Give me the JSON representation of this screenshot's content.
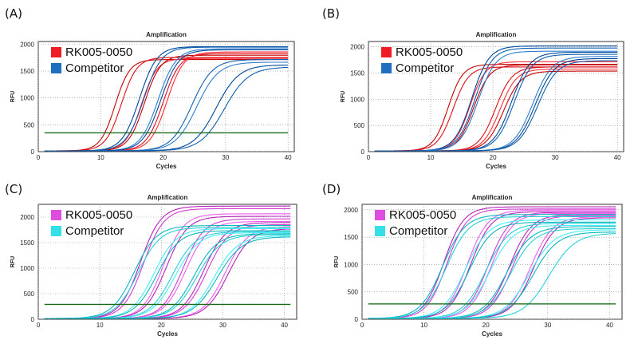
{
  "panel_labels": [
    "(A)",
    "(B)",
    "(C)",
    "(D)"
  ],
  "chart_data": [
    {
      "type": "line",
      "title": "Amplification",
      "xlabel": "Cycles",
      "ylabel": "RFU",
      "xlim": [
        0,
        41
      ],
      "ylim": [
        0,
        2050
      ],
      "xticks": [
        0,
        10,
        20,
        30,
        40
      ],
      "yticks": [
        0,
        500,
        1000,
        1500,
        2000
      ],
      "grid": true,
      "legend_position": "top-left",
      "threshold": 350,
      "legend": [
        {
          "label": "RK005-0050",
          "color": "#ee1c25"
        },
        {
          "label": "Competitor",
          "color": "#1f6fc0"
        }
      ],
      "series": [
        {
          "group": 0,
          "ct": 12.3,
          "plateau": 1700,
          "slope": 0.85
        },
        {
          "group": 0,
          "ct": 13.3,
          "plateau": 1740,
          "slope": 0.8
        },
        {
          "group": 0,
          "ct": 16.5,
          "plateau": 1720,
          "slope": 0.8
        },
        {
          "group": 0,
          "ct": 17.0,
          "plateau": 1780,
          "slope": 0.78
        },
        {
          "group": 0,
          "ct": 20.0,
          "plateau": 1810,
          "slope": 0.75
        },
        {
          "group": 0,
          "ct": 20.6,
          "plateau": 1840,
          "slope": 0.75
        },
        {
          "group": 1,
          "ct": 16.2,
          "plateau": 1940,
          "slope": 0.72
        },
        {
          "group": 1,
          "ct": 16.9,
          "plateau": 1930,
          "slope": 0.7
        },
        {
          "group": 1,
          "ct": 19.2,
          "plateau": 1900,
          "slope": 0.7
        },
        {
          "group": 1,
          "ct": 19.6,
          "plateau": 1880,
          "slope": 0.7
        },
        {
          "group": 1,
          "ct": 24.6,
          "plateau": 1700,
          "slope": 0.6
        },
        {
          "group": 1,
          "ct": 25.4,
          "plateau": 1650,
          "slope": 0.58
        },
        {
          "group": 1,
          "ct": 28.5,
          "plateau": 1600,
          "slope": 0.55
        },
        {
          "group": 1,
          "ct": 29.8,
          "plateau": 1560,
          "slope": 0.52
        }
      ]
    },
    {
      "type": "line",
      "title": "Amplification",
      "xlabel": "Cycles",
      "ylabel": "RFU",
      "xlim": [
        0,
        41
      ],
      "ylim": [
        0,
        2100
      ],
      "xticks": [
        0,
        10,
        20,
        30,
        40
      ],
      "yticks": [
        0,
        500,
        1000,
        1500,
        2000
      ],
      "grid": true,
      "legend_position": "top-left",
      "threshold": null,
      "legend": [
        {
          "label": "RK005-0050",
          "color": "#ee1c25"
        },
        {
          "label": "Competitor",
          "color": "#1f6fc0"
        }
      ],
      "series": [
        {
          "group": 0,
          "ct": 12.8,
          "plateau": 1650,
          "slope": 0.85
        },
        {
          "group": 0,
          "ct": 13.6,
          "plateau": 1600,
          "slope": 0.8
        },
        {
          "group": 0,
          "ct": 16.3,
          "plateau": 1700,
          "slope": 0.8
        },
        {
          "group": 0,
          "ct": 16.9,
          "plateau": 1640,
          "slope": 0.78
        },
        {
          "group": 0,
          "ct": 20.4,
          "plateau": 1600,
          "slope": 0.75
        },
        {
          "group": 0,
          "ct": 21.1,
          "plateau": 1560,
          "slope": 0.75
        },
        {
          "group": 0,
          "ct": 21.7,
          "plateau": 1520,
          "slope": 0.72
        },
        {
          "group": 1,
          "ct": 16.6,
          "plateau": 2000,
          "slope": 0.72
        },
        {
          "group": 1,
          "ct": 17.1,
          "plateau": 1960,
          "slope": 0.72
        },
        {
          "group": 1,
          "ct": 17.6,
          "plateau": 1900,
          "slope": 0.7
        },
        {
          "group": 1,
          "ct": 23.0,
          "plateau": 1880,
          "slope": 0.68
        },
        {
          "group": 1,
          "ct": 23.4,
          "plateau": 1840,
          "slope": 0.68
        },
        {
          "group": 1,
          "ct": 26.4,
          "plateau": 1800,
          "slope": 0.65
        },
        {
          "group": 1,
          "ct": 26.8,
          "plateau": 1760,
          "slope": 0.65
        },
        {
          "group": 1,
          "ct": 27.2,
          "plateau": 1720,
          "slope": 0.64
        }
      ]
    },
    {
      "type": "line",
      "title": "Amplification",
      "xlabel": "Cycles",
      "ylabel": "RFU",
      "xlim": [
        0,
        42
      ],
      "ylim": [
        0,
        2250
      ],
      "xticks": [
        0,
        10,
        20,
        30,
        40
      ],
      "yticks": [
        0,
        500,
        1000,
        1500,
        2000
      ],
      "grid": true,
      "legend_position": "top-left",
      "threshold": 290,
      "legend": [
        {
          "label": "RK005-0050",
          "color": "#e04be0"
        },
        {
          "label": "Competitor",
          "color": "#33e0e6"
        }
      ],
      "series": [
        {
          "group": 0,
          "ct": 16.6,
          "plateau": 2200,
          "slope": 0.6
        },
        {
          "group": 0,
          "ct": 17.1,
          "plateau": 2150,
          "slope": 0.6
        },
        {
          "group": 0,
          "ct": 20.3,
          "plateau": 2050,
          "slope": 0.6
        },
        {
          "group": 0,
          "ct": 20.8,
          "plateau": 2000,
          "slope": 0.58
        },
        {
          "group": 0,
          "ct": 23.5,
          "plateau": 1950,
          "slope": 0.58
        },
        {
          "group": 0,
          "ct": 24.0,
          "plateau": 1900,
          "slope": 0.56
        },
        {
          "group": 0,
          "ct": 26.9,
          "plateau": 1880,
          "slope": 0.56
        },
        {
          "group": 0,
          "ct": 27.4,
          "plateau": 1840,
          "slope": 0.55
        },
        {
          "group": 0,
          "ct": 30.4,
          "plateau": 1800,
          "slope": 0.55
        },
        {
          "group": 0,
          "ct": 30.9,
          "plateau": 1760,
          "slope": 0.54
        },
        {
          "group": 1,
          "ct": 15.6,
          "plateau": 1820,
          "slope": 0.55
        },
        {
          "group": 1,
          "ct": 16.2,
          "plateau": 1780,
          "slope": 0.55
        },
        {
          "group": 1,
          "ct": 18.8,
          "plateau": 1760,
          "slope": 0.55
        },
        {
          "group": 1,
          "ct": 19.3,
          "plateau": 1720,
          "slope": 0.54
        },
        {
          "group": 1,
          "ct": 21.8,
          "plateau": 1700,
          "slope": 0.54
        },
        {
          "group": 1,
          "ct": 22.3,
          "plateau": 1680,
          "slope": 0.53
        },
        {
          "group": 1,
          "ct": 25.3,
          "plateau": 1660,
          "slope": 0.53
        },
        {
          "group": 1,
          "ct": 25.8,
          "plateau": 1640,
          "slope": 0.52
        },
        {
          "group": 1,
          "ct": 28.6,
          "plateau": 1620,
          "slope": 0.52
        },
        {
          "group": 1,
          "ct": 29.1,
          "plateau": 1600,
          "slope": 0.5
        }
      ]
    },
    {
      "type": "line",
      "title": "Amplification",
      "xlabel": "Cycles",
      "ylabel": "RFU",
      "xlim": [
        0,
        42
      ],
      "ylim": [
        0,
        2100
      ],
      "xticks": [
        0,
        10,
        20,
        30,
        40
      ],
      "yticks": [
        0,
        500,
        1000,
        1500,
        2000
      ],
      "grid": true,
      "legend_position": "top-left",
      "threshold": 280,
      "legend": [
        {
          "label": "RK005-0050",
          "color": "#e04be0"
        },
        {
          "label": "Competitor",
          "color": "#33e0e6"
        }
      ],
      "series": [
        {
          "group": 0,
          "ct": 13.2,
          "plateau": 2040,
          "slope": 0.62
        },
        {
          "group": 0,
          "ct": 13.7,
          "plateau": 2000,
          "slope": 0.62
        },
        {
          "group": 0,
          "ct": 17.0,
          "plateau": 1980,
          "slope": 0.6
        },
        {
          "group": 0,
          "ct": 17.5,
          "plateau": 1950,
          "slope": 0.6
        },
        {
          "group": 0,
          "ct": 20.4,
          "plateau": 1940,
          "slope": 0.58
        },
        {
          "group": 0,
          "ct": 20.9,
          "plateau": 1920,
          "slope": 0.58
        },
        {
          "group": 0,
          "ct": 23.8,
          "plateau": 1900,
          "slope": 0.57
        },
        {
          "group": 0,
          "ct": 24.3,
          "plateau": 1880,
          "slope": 0.57
        },
        {
          "group": 0,
          "ct": 27.2,
          "plateau": 1860,
          "slope": 0.56
        },
        {
          "group": 0,
          "ct": 27.7,
          "plateau": 1840,
          "slope": 0.56
        },
        {
          "group": 1,
          "ct": 13.0,
          "plateau": 1900,
          "slope": 0.55
        },
        {
          "group": 1,
          "ct": 13.6,
          "plateau": 1860,
          "slope": 0.55
        },
        {
          "group": 1,
          "ct": 16.7,
          "plateau": 1800,
          "slope": 0.54
        },
        {
          "group": 1,
          "ct": 17.3,
          "plateau": 1760,
          "slope": 0.54
        },
        {
          "group": 1,
          "ct": 20.0,
          "plateau": 1740,
          "slope": 0.53
        },
        {
          "group": 1,
          "ct": 20.6,
          "plateau": 1700,
          "slope": 0.53
        },
        {
          "group": 1,
          "ct": 23.4,
          "plateau": 1680,
          "slope": 0.52
        },
        {
          "group": 1,
          "ct": 24.0,
          "plateau": 1640,
          "slope": 0.52
        },
        {
          "group": 1,
          "ct": 27.0,
          "plateau": 1620,
          "slope": 0.5
        },
        {
          "group": 1,
          "ct": 27.6,
          "plateau": 1580,
          "slope": 0.5
        },
        {
          "group": 1,
          "ct": 30.2,
          "plateau": 1560,
          "slope": 0.48
        }
      ]
    }
  ]
}
